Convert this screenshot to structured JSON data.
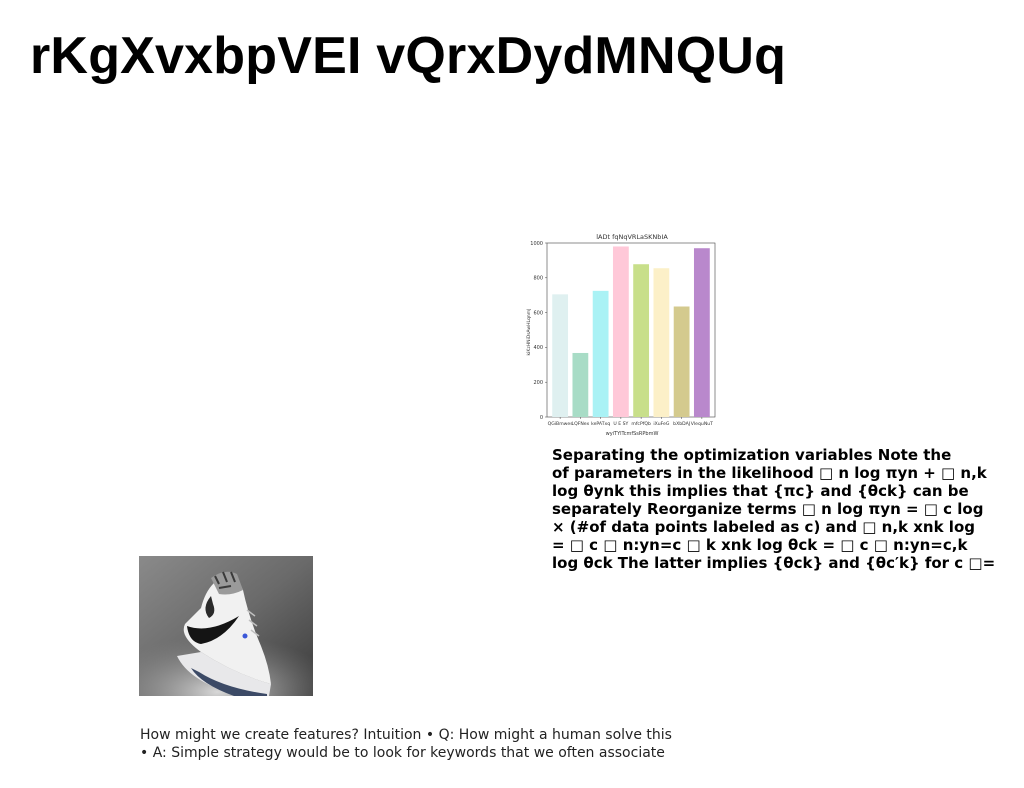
{
  "title": "rKgXvxbpVEI vQrxDydMNQUq",
  "chart_data": {
    "type": "bar",
    "title": "lADt fqNqVRLaSKNbIA",
    "xlabel": "wyiTYlTcmfSsRPbmW",
    "ylabel": "kiKzHNiDsAwHLqnmJ",
    "categories": [
      "QGiBmwes",
      "LQFNex",
      "kePATxq",
      "U E SY",
      "mfcPfQb",
      "iXuFeG",
      "bXbDAJ",
      "VlequNuT"
    ],
    "values": [
      705,
      368,
      725,
      980,
      878,
      855,
      635,
      970
    ],
    "colors": [
      "#dff0f0",
      "#a8dcc6",
      "#aaf2f5",
      "#ffc8d8",
      "#c8df8a",
      "#fcf0c8",
      "#d4ca8e",
      "#b988cc"
    ],
    "ylim": [
      0,
      1000
    ],
    "yticks": [
      0,
      200,
      400,
      600,
      800,
      1000
    ],
    "grid": false
  },
  "body_lines": [
    "Separating the optimization variables Note the",
    "of parameters in the likelihood □ n log πyn + □ n,k",
    "log θynk this implies that {πc} and {θck} can be",
    "separately Reorganize terms □ n log πyn = □ c log",
    "× (#of data points labeled as c) and □ n,k xnk log",
    "= □ c □ n:yn=c □ k xnk log θck = □ c □ n:yn=c,k",
    "log θck The latter implies {θck} and {θc′k} for c □="
  ],
  "footer_lines": [
    "How might we create features? Intuition • Q: How might a human solve this",
    "• A: Simple strategy would be to look for keywords that we often associate"
  ]
}
